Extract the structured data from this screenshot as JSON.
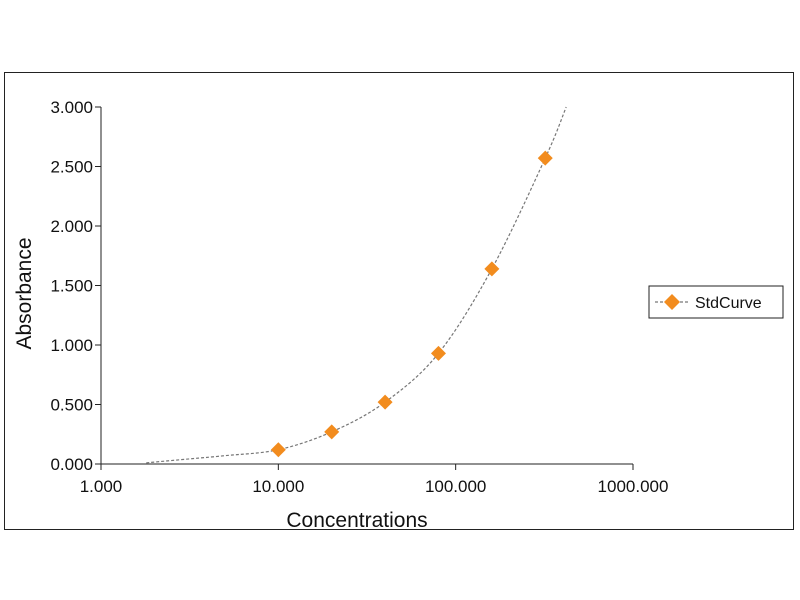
{
  "chart_data": {
    "type": "scatter",
    "title": "",
    "xlabel": "Concentrations",
    "ylabel": "Absorbance",
    "x_scale": "log",
    "xlim": [
      1,
      1000
    ],
    "ylim": [
      0,
      3
    ],
    "x_ticks": [
      1,
      10,
      100,
      1000
    ],
    "x_tick_labels": [
      "1.000",
      "10.000",
      "100.000",
      "1000.000"
    ],
    "y_ticks": [
      0,
      0.5,
      1,
      1.5,
      2,
      2.5,
      3
    ],
    "y_tick_labels": [
      "0.000",
      "0.500",
      "1.000",
      "1.500",
      "2.000",
      "2.500",
      "3.000"
    ],
    "grid": false,
    "legend_position": "right",
    "series": [
      {
        "name": "StdCurve",
        "color": "#f28c1e",
        "marker": "diamond",
        "x": [
          10,
          20,
          40,
          80,
          160,
          320
        ],
        "y": [
          0.12,
          0.27,
          0.52,
          0.93,
          1.64,
          2.57
        ]
      }
    ],
    "fit_line": {
      "color": "#777777",
      "style": "dashed",
      "x": [
        1.8,
        3,
        5,
        10,
        20,
        40,
        80,
        160,
        320,
        420
      ],
      "y": [
        0.01,
        0.04,
        0.07,
        0.12,
        0.27,
        0.52,
        0.93,
        1.64,
        2.57,
        3.0
      ]
    }
  }
}
